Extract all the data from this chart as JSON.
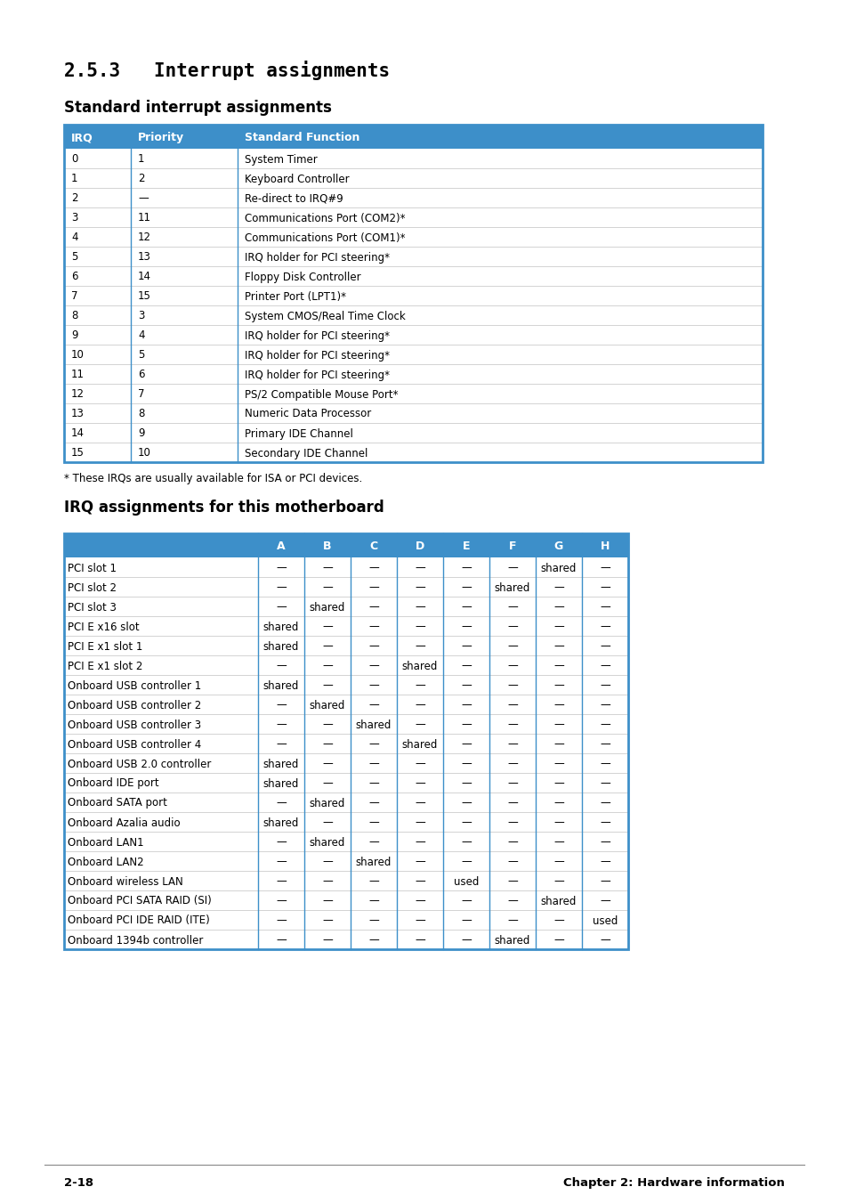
{
  "title": "2.5.3   Interrupt assignments",
  "subtitle1": "Standard interrupt assignments",
  "subtitle2": "IRQ assignments for this motherboard",
  "header_color": "#3d8fc9",
  "header_text_color": "#ffffff",
  "bg_color": "#ffffff",
  "table_border_color": "#3d8fc9",
  "footnote": "* These IRQs are usually available for ISA or PCI devices.",
  "footer_left": "2-18",
  "footer_right": "Chapter 2: Hardware information",
  "irq_table": {
    "headers": [
      "IRQ",
      "Priority",
      "Standard Function"
    ],
    "rows": [
      [
        "0",
        "1",
        "System Timer"
      ],
      [
        "1",
        "2",
        "Keyboard Controller"
      ],
      [
        "2",
        "—",
        "Re-direct to IRQ#9"
      ],
      [
        "3",
        "11",
        "Communications Port (COM2)*"
      ],
      [
        "4",
        "12",
        "Communications Port (COM1)*"
      ],
      [
        "5",
        "13",
        "IRQ holder for PCI steering*"
      ],
      [
        "6",
        "14",
        "Floppy Disk Controller"
      ],
      [
        "7",
        "15",
        "Printer Port (LPT1)*"
      ],
      [
        "8",
        "3",
        "System CMOS/Real Time Clock"
      ],
      [
        "9",
        "4",
        "IRQ holder for PCI steering*"
      ],
      [
        "10",
        "5",
        "IRQ holder for PCI steering*"
      ],
      [
        "11",
        "6",
        "IRQ holder for PCI steering*"
      ],
      [
        "12",
        "7",
        "PS/2 Compatible Mouse Port*"
      ],
      [
        "13",
        "8",
        "Numeric Data Processor"
      ],
      [
        "14",
        "9",
        "Primary IDE Channel"
      ],
      [
        "15",
        "10",
        "Secondary IDE Channel"
      ]
    ]
  },
  "irq2_table": {
    "headers": [
      "",
      "A",
      "B",
      "C",
      "D",
      "E",
      "F",
      "G",
      "H"
    ],
    "rows": [
      [
        "PCI slot 1",
        "—",
        "—",
        "—",
        "—",
        "—",
        "—",
        "shared",
        "—"
      ],
      [
        "PCI slot 2",
        "—",
        "—",
        "—",
        "—",
        "—",
        "shared",
        "—",
        "—"
      ],
      [
        "PCI slot 3",
        "—",
        "shared",
        "—",
        "—",
        "—",
        "—",
        "—",
        "—"
      ],
      [
        "PCI E x16 slot",
        "shared",
        "—",
        "—",
        "—",
        "—",
        "—",
        "—",
        "—"
      ],
      [
        "PCI E x1 slot 1",
        "shared",
        "—",
        "—",
        "—",
        "—",
        "—",
        "—",
        "—"
      ],
      [
        "PCI E x1 slot 2",
        "—",
        "—",
        "—",
        "shared",
        "—",
        "—",
        "—",
        "—"
      ],
      [
        "Onboard USB controller 1",
        "shared",
        "—",
        "—",
        "—",
        "—",
        "—",
        "—",
        "—"
      ],
      [
        "Onboard USB controller 2",
        "—",
        "shared",
        "—",
        "—",
        "—",
        "—",
        "—",
        "—"
      ],
      [
        "Onboard USB controller 3",
        "—",
        "—",
        "shared",
        "—",
        "—",
        "—",
        "—",
        "—"
      ],
      [
        "Onboard USB controller 4",
        "—",
        "—",
        "—",
        "shared",
        "—",
        "—",
        "—",
        "—"
      ],
      [
        "Onboard USB 2.0 controller",
        "shared",
        "—",
        "—",
        "—",
        "—",
        "—",
        "—",
        "—"
      ],
      [
        "Onboard IDE port",
        "shared",
        "—",
        "—",
        "—",
        "—",
        "—",
        "—",
        "—"
      ],
      [
        "Onboard SATA port",
        "—",
        "shared",
        "—",
        "—",
        "—",
        "—",
        "—",
        "—"
      ],
      [
        "Onboard Azalia audio",
        "shared",
        "—",
        "—",
        "—",
        "—",
        "—",
        "—",
        "—"
      ],
      [
        "Onboard LAN1",
        "—",
        "shared",
        "—",
        "—",
        "—",
        "—",
        "—",
        "—"
      ],
      [
        "Onboard LAN2",
        "—",
        "—",
        "shared",
        "—",
        "—",
        "—",
        "—",
        "—"
      ],
      [
        "Onboard wireless LAN",
        "—",
        "—",
        "—",
        "—",
        "used",
        "—",
        "—",
        "—"
      ],
      [
        "Onboard PCI SATA RAID (SI)",
        "—",
        "—",
        "—",
        "—",
        "—",
        "—",
        "shared",
        "—"
      ],
      [
        "Onboard PCI IDE RAID (ITE)",
        "—",
        "—",
        "—",
        "—",
        "—",
        "—",
        "—",
        "used"
      ],
      [
        "Onboard 1394b controller",
        "—",
        "—",
        "—",
        "—",
        "—",
        "shared",
        "—",
        "—"
      ]
    ]
  }
}
